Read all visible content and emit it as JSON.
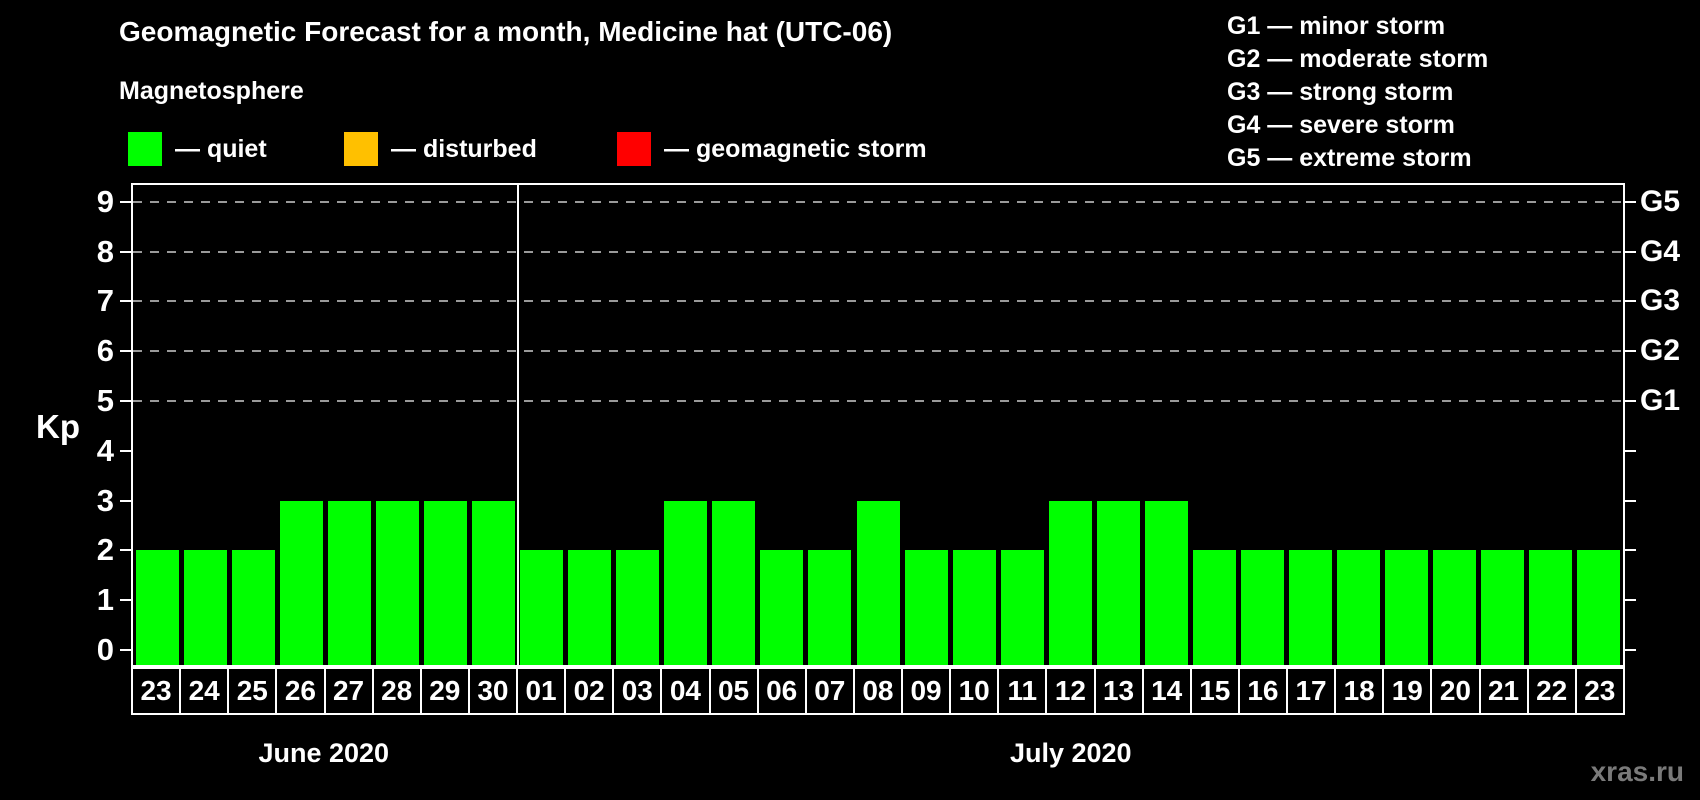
{
  "header": {
    "title": "Geomagnetic Forecast for a month, Medicine hat (UTC-06)"
  },
  "legend": {
    "title": "Magnetosphere",
    "items": [
      {
        "name": "quiet",
        "label": "— quiet",
        "color": "#00ff00"
      },
      {
        "name": "disturbed",
        "label": "— disturbed",
        "color": "#ffc000"
      },
      {
        "name": "geomagnetic-storm",
        "label": "— geomagnetic storm",
        "color": "#ff0000"
      }
    ]
  },
  "g_legend": {
    "items": [
      "G1 — minor storm",
      "G2 — moderate storm",
      "G3 — strong storm",
      "G4 — severe storm",
      "G5 — extreme storm"
    ]
  },
  "footer": {
    "watermark": "xras.ru"
  },
  "chart_data": {
    "type": "bar",
    "title": "Geomagnetic Forecast for a month, Medicine hat (UTC-06)",
    "xlabel": "",
    "ylabel": "Kp",
    "ylim": [
      -0.3,
      9.7
    ],
    "bar_color": "#00ff00",
    "grid": "horizontal dashed lines at Kp 5-9 (G1-G5 levels)",
    "legend_position": "top-left (magnetosphere) and top-right (G-scale)",
    "categories": [
      "23",
      "24",
      "25",
      "26",
      "27",
      "28",
      "29",
      "30",
      "01",
      "02",
      "03",
      "04",
      "05",
      "06",
      "07",
      "08",
      "09",
      "10",
      "11",
      "12",
      "13",
      "14",
      "15",
      "16",
      "17",
      "18",
      "19",
      "20",
      "21",
      "22",
      "23"
    ],
    "values": [
      2,
      2,
      2,
      3,
      3,
      3,
      3,
      3,
      2,
      2,
      2,
      3,
      3,
      2,
      2,
      3,
      2,
      2,
      2,
      3,
      3,
      3,
      2,
      2,
      2,
      2,
      2,
      2,
      2,
      2,
      2
    ],
    "kp_ticks": [
      0,
      1,
      2,
      3,
      4,
      5,
      6,
      7,
      8,
      9
    ],
    "g_ticks": [
      {
        "label": "G1",
        "kp": 5
      },
      {
        "label": "G2",
        "kp": 6
      },
      {
        "label": "G3",
        "kp": 7
      },
      {
        "label": "G4",
        "kp": 8
      },
      {
        "label": "G5",
        "kp": 9
      }
    ],
    "gridlines_at_kp": [
      5,
      6,
      7,
      8,
      9
    ],
    "months": [
      {
        "label": "June 2020",
        "count": 8
      },
      {
        "label": "July 2020",
        "count": 23
      }
    ]
  }
}
